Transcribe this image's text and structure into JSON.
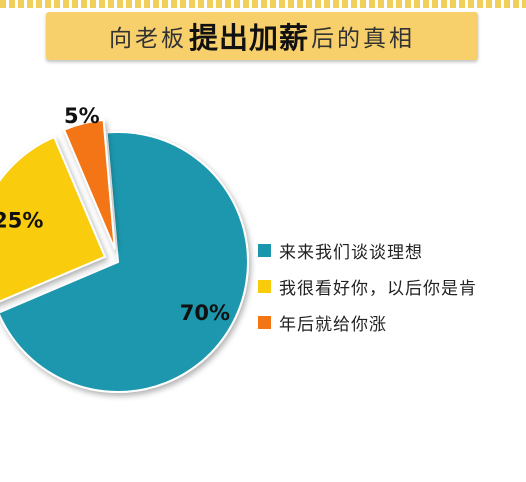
{
  "title": {
    "prefix": "向老板",
    "emphasis": "提出加薪",
    "suffix": "后的真相"
  },
  "colors": {
    "banner": "#f7d06b",
    "series": [
      "#1a97ad",
      "#f9cc0b",
      "#f47513"
    ]
  },
  "chart_data": {
    "type": "pie",
    "title": "向老板提出加薪后的真相",
    "categories": [
      "来来我们谈谈理想",
      "我很看好你，以后你是肯",
      "年后就给你涨"
    ],
    "values": [
      70,
      25,
      5
    ],
    "value_labels": [
      "70%",
      "25%",
      "5%"
    ],
    "legend_position": "right",
    "exploded": true
  }
}
